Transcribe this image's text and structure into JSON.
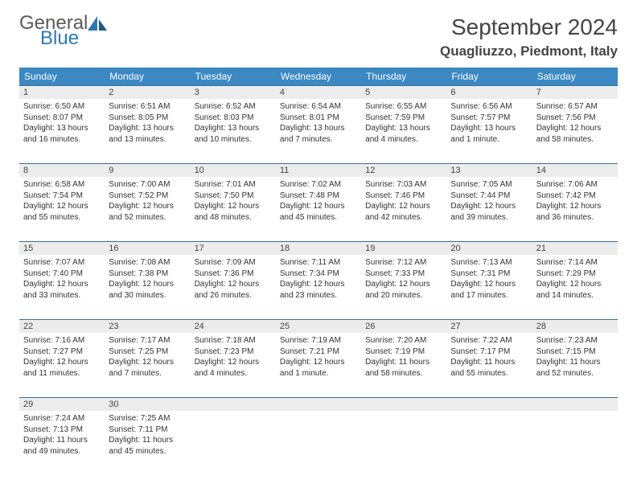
{
  "brand": {
    "line1": "General",
    "line2": "Blue"
  },
  "title": "September 2024",
  "location": "Quagliuzzo, Piedmont, Italy",
  "colors": {
    "header_bg": "#3b88c3",
    "grey_bg": "#ececec",
    "rule": "#3b6d92"
  },
  "day_headers": [
    "Sunday",
    "Monday",
    "Tuesday",
    "Wednesday",
    "Thursday",
    "Friday",
    "Saturday"
  ],
  "days": [
    {
      "n": "1",
      "sr": "6:50 AM",
      "ss": "8:07 PM",
      "dl": "13 hours and 16 minutes."
    },
    {
      "n": "2",
      "sr": "6:51 AM",
      "ss": "8:05 PM",
      "dl": "13 hours and 13 minutes."
    },
    {
      "n": "3",
      "sr": "6:52 AM",
      "ss": "8:03 PM",
      "dl": "13 hours and 10 minutes."
    },
    {
      "n": "4",
      "sr": "6:54 AM",
      "ss": "8:01 PM",
      "dl": "13 hours and 7 minutes."
    },
    {
      "n": "5",
      "sr": "6:55 AM",
      "ss": "7:59 PM",
      "dl": "13 hours and 4 minutes."
    },
    {
      "n": "6",
      "sr": "6:56 AM",
      "ss": "7:57 PM",
      "dl": "13 hours and 1 minute."
    },
    {
      "n": "7",
      "sr": "6:57 AM",
      "ss": "7:56 PM",
      "dl": "12 hours and 58 minutes."
    },
    {
      "n": "8",
      "sr": "6:58 AM",
      "ss": "7:54 PM",
      "dl": "12 hours and 55 minutes."
    },
    {
      "n": "9",
      "sr": "7:00 AM",
      "ss": "7:52 PM",
      "dl": "12 hours and 52 minutes."
    },
    {
      "n": "10",
      "sr": "7:01 AM",
      "ss": "7:50 PM",
      "dl": "12 hours and 48 minutes."
    },
    {
      "n": "11",
      "sr": "7:02 AM",
      "ss": "7:48 PM",
      "dl": "12 hours and 45 minutes."
    },
    {
      "n": "12",
      "sr": "7:03 AM",
      "ss": "7:46 PM",
      "dl": "12 hours and 42 minutes."
    },
    {
      "n": "13",
      "sr": "7:05 AM",
      "ss": "7:44 PM",
      "dl": "12 hours and 39 minutes."
    },
    {
      "n": "14",
      "sr": "7:06 AM",
      "ss": "7:42 PM",
      "dl": "12 hours and 36 minutes."
    },
    {
      "n": "15",
      "sr": "7:07 AM",
      "ss": "7:40 PM",
      "dl": "12 hours and 33 minutes."
    },
    {
      "n": "16",
      "sr": "7:08 AM",
      "ss": "7:38 PM",
      "dl": "12 hours and 30 minutes."
    },
    {
      "n": "17",
      "sr": "7:09 AM",
      "ss": "7:36 PM",
      "dl": "12 hours and 26 minutes."
    },
    {
      "n": "18",
      "sr": "7:11 AM",
      "ss": "7:34 PM",
      "dl": "12 hours and 23 minutes."
    },
    {
      "n": "19",
      "sr": "7:12 AM",
      "ss": "7:33 PM",
      "dl": "12 hours and 20 minutes."
    },
    {
      "n": "20",
      "sr": "7:13 AM",
      "ss": "7:31 PM",
      "dl": "12 hours and 17 minutes."
    },
    {
      "n": "21",
      "sr": "7:14 AM",
      "ss": "7:29 PM",
      "dl": "12 hours and 14 minutes."
    },
    {
      "n": "22",
      "sr": "7:16 AM",
      "ss": "7:27 PM",
      "dl": "12 hours and 11 minutes."
    },
    {
      "n": "23",
      "sr": "7:17 AM",
      "ss": "7:25 PM",
      "dl": "12 hours and 7 minutes."
    },
    {
      "n": "24",
      "sr": "7:18 AM",
      "ss": "7:23 PM",
      "dl": "12 hours and 4 minutes."
    },
    {
      "n": "25",
      "sr": "7:19 AM",
      "ss": "7:21 PM",
      "dl": "12 hours and 1 minute."
    },
    {
      "n": "26",
      "sr": "7:20 AM",
      "ss": "7:19 PM",
      "dl": "11 hours and 58 minutes."
    },
    {
      "n": "27",
      "sr": "7:22 AM",
      "ss": "7:17 PM",
      "dl": "11 hours and 55 minutes."
    },
    {
      "n": "28",
      "sr": "7:23 AM",
      "ss": "7:15 PM",
      "dl": "11 hours and 52 minutes."
    },
    {
      "n": "29",
      "sr": "7:24 AM",
      "ss": "7:13 PM",
      "dl": "11 hours and 49 minutes."
    },
    {
      "n": "30",
      "sr": "7:25 AM",
      "ss": "7:11 PM",
      "dl": "11 hours and 45 minutes."
    }
  ],
  "labels": {
    "sunrise": "Sunrise:",
    "sunset": "Sunset:",
    "daylight": "Daylight:"
  }
}
